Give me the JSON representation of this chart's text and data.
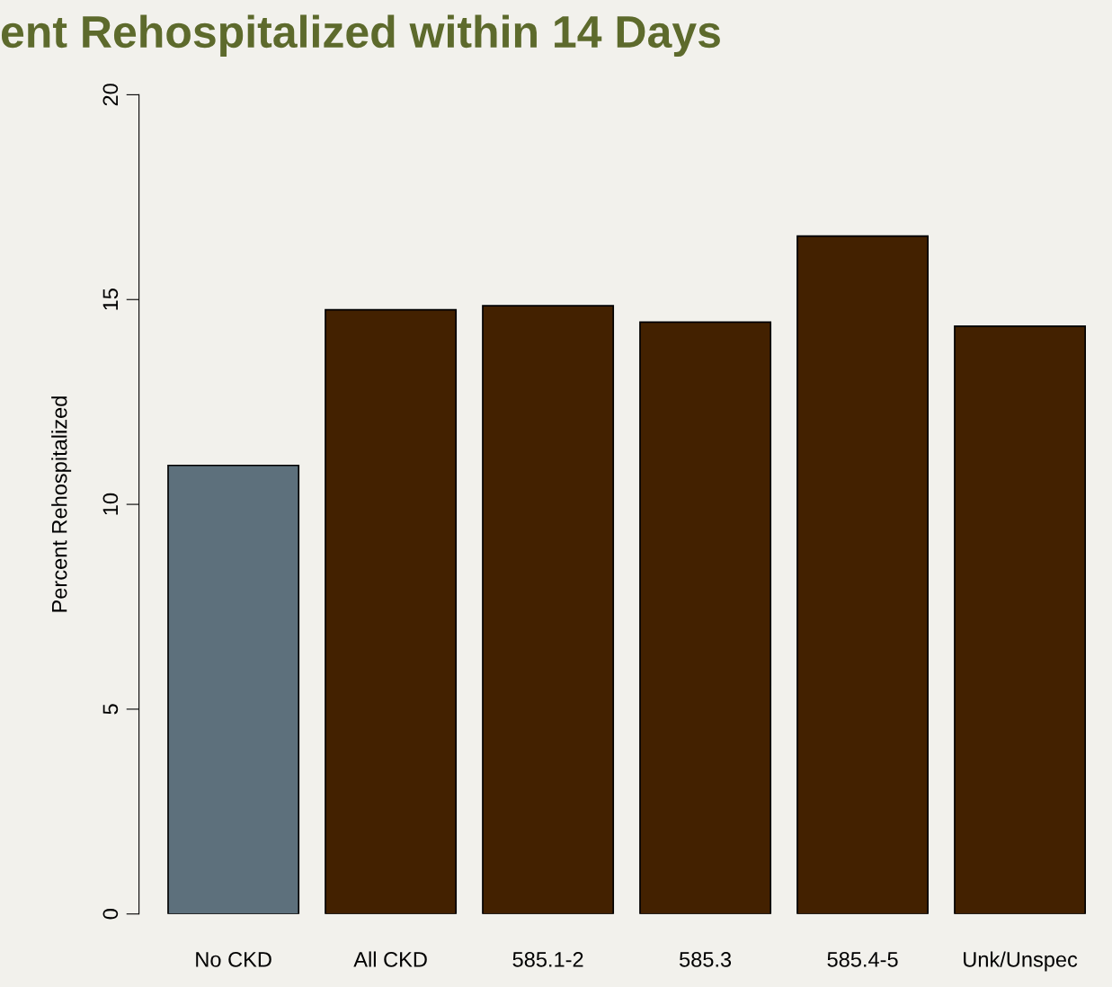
{
  "chart_data": {
    "type": "bar",
    "title": "ent Rehospitalized within 14 Days",
    "ylabel": "Percent Rehospitalized",
    "categories": [
      "No CKD",
      "All CKD",
      "585.1-2",
      "585.3",
      "585.4-5",
      "Unk/Unspec"
    ],
    "values": [
      10.95,
      14.75,
      14.85,
      14.45,
      16.55,
      14.35
    ],
    "colors": [
      "#5d707c",
      "#432100",
      "#432100",
      "#432100",
      "#432100",
      "#432100"
    ],
    "ylim": [
      0,
      20
    ],
    "yticks": [
      0,
      5,
      10,
      15,
      20
    ],
    "grid": false
  }
}
